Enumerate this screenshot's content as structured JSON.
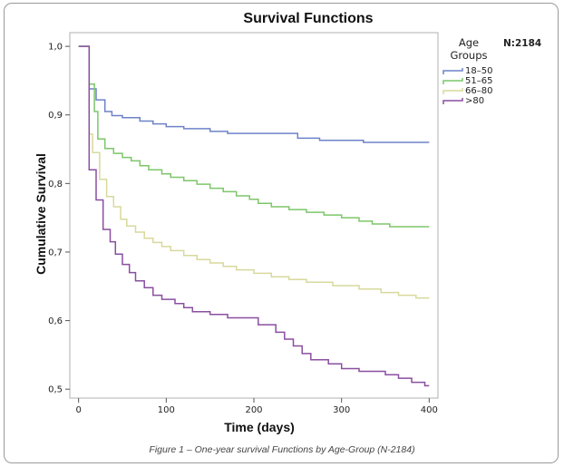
{
  "caption": "Figure 1 – One-year survival Functions by Age-Group (N-2184)",
  "chart_data": {
    "type": "line",
    "title": "Survival Functions",
    "xlabel": "Time (days)",
    "ylabel": "Cumulative Survival",
    "xlim": [
      -10,
      410
    ],
    "ylim": [
      0.487,
      1.02
    ],
    "x_ticks": [
      0,
      100,
      200,
      300,
      400
    ],
    "x_tick_labels": [
      "0",
      "100",
      "200",
      "300",
      "400"
    ],
    "y_ticks": [
      0.5,
      0.6,
      0.7,
      0.8,
      0.9,
      1.0
    ],
    "y_tick_labels": [
      "0,5",
      "0,6",
      "0,7",
      "0,8",
      "0,9",
      "1,0"
    ],
    "grid": false,
    "legend": {
      "title_line1": "Age",
      "title_line2": "Groups",
      "position": "right"
    },
    "annotation": "N:2184",
    "step": true,
    "series": [
      {
        "name": "18–50",
        "color": "#6e82c8",
        "points": [
          [
            0,
            1.0
          ],
          [
            12,
            1.0
          ],
          [
            12,
            0.938
          ],
          [
            20,
            0.938
          ],
          [
            20,
            0.922
          ],
          [
            30,
            0.922
          ],
          [
            30,
            0.905
          ],
          [
            38,
            0.905
          ],
          [
            38,
            0.899
          ],
          [
            50,
            0.899
          ],
          [
            50,
            0.896
          ],
          [
            70,
            0.896
          ],
          [
            70,
            0.891
          ],
          [
            85,
            0.891
          ],
          [
            85,
            0.887
          ],
          [
            100,
            0.887
          ],
          [
            100,
            0.883
          ],
          [
            120,
            0.883
          ],
          [
            120,
            0.88
          ],
          [
            150,
            0.88
          ],
          [
            150,
            0.876
          ],
          [
            170,
            0.876
          ],
          [
            170,
            0.873
          ],
          [
            250,
            0.873
          ],
          [
            250,
            0.866
          ],
          [
            275,
            0.866
          ],
          [
            275,
            0.863
          ],
          [
            325,
            0.863
          ],
          [
            325,
            0.86
          ],
          [
            400,
            0.86
          ]
        ]
      },
      {
        "name": "51–65",
        "color": "#7dc66a",
        "points": [
          [
            0,
            1.0
          ],
          [
            12,
            1.0
          ],
          [
            12,
            0.945
          ],
          [
            18,
            0.945
          ],
          [
            18,
            0.905
          ],
          [
            22,
            0.905
          ],
          [
            22,
            0.865
          ],
          [
            30,
            0.865
          ],
          [
            30,
            0.851
          ],
          [
            40,
            0.851
          ],
          [
            40,
            0.844
          ],
          [
            50,
            0.844
          ],
          [
            50,
            0.838
          ],
          [
            60,
            0.838
          ],
          [
            60,
            0.833
          ],
          [
            70,
            0.833
          ],
          [
            70,
            0.826
          ],
          [
            80,
            0.826
          ],
          [
            80,
            0.82
          ],
          [
            95,
            0.82
          ],
          [
            95,
            0.814
          ],
          [
            105,
            0.814
          ],
          [
            105,
            0.809
          ],
          [
            120,
            0.809
          ],
          [
            120,
            0.804
          ],
          [
            135,
            0.804
          ],
          [
            135,
            0.799
          ],
          [
            150,
            0.799
          ],
          [
            150,
            0.793
          ],
          [
            165,
            0.793
          ],
          [
            165,
            0.788
          ],
          [
            180,
            0.788
          ],
          [
            180,
            0.782
          ],
          [
            195,
            0.782
          ],
          [
            195,
            0.777
          ],
          [
            205,
            0.777
          ],
          [
            205,
            0.771
          ],
          [
            220,
            0.771
          ],
          [
            220,
            0.766
          ],
          [
            240,
            0.766
          ],
          [
            240,
            0.762
          ],
          [
            260,
            0.762
          ],
          [
            260,
            0.758
          ],
          [
            280,
            0.758
          ],
          [
            280,
            0.754
          ],
          [
            300,
            0.754
          ],
          [
            300,
            0.75
          ],
          [
            320,
            0.75
          ],
          [
            320,
            0.745
          ],
          [
            335,
            0.745
          ],
          [
            335,
            0.741
          ],
          [
            355,
            0.741
          ],
          [
            355,
            0.737
          ],
          [
            400,
            0.737
          ]
        ]
      },
      {
        "name": "66–80",
        "color": "#d8d99c",
        "points": [
          [
            0,
            1.0
          ],
          [
            12,
            1.0
          ],
          [
            12,
            0.872
          ],
          [
            16,
            0.872
          ],
          [
            16,
            0.845
          ],
          [
            24,
            0.845
          ],
          [
            24,
            0.806
          ],
          [
            32,
            0.806
          ],
          [
            32,
            0.781
          ],
          [
            40,
            0.781
          ],
          [
            40,
            0.766
          ],
          [
            48,
            0.766
          ],
          [
            48,
            0.748
          ],
          [
            55,
            0.748
          ],
          [
            55,
            0.738
          ],
          [
            65,
            0.738
          ],
          [
            65,
            0.729
          ],
          [
            75,
            0.729
          ],
          [
            75,
            0.72
          ],
          [
            85,
            0.72
          ],
          [
            85,
            0.714
          ],
          [
            95,
            0.714
          ],
          [
            95,
            0.708
          ],
          [
            105,
            0.708
          ],
          [
            105,
            0.702
          ],
          [
            120,
            0.702
          ],
          [
            120,
            0.695
          ],
          [
            135,
            0.695
          ],
          [
            135,
            0.689
          ],
          [
            150,
            0.689
          ],
          [
            150,
            0.684
          ],
          [
            165,
            0.684
          ],
          [
            165,
            0.679
          ],
          [
            180,
            0.679
          ],
          [
            180,
            0.674
          ],
          [
            200,
            0.674
          ],
          [
            200,
            0.669
          ],
          [
            220,
            0.669
          ],
          [
            220,
            0.664
          ],
          [
            240,
            0.664
          ],
          [
            240,
            0.66
          ],
          [
            260,
            0.66
          ],
          [
            260,
            0.656
          ],
          [
            290,
            0.656
          ],
          [
            290,
            0.651
          ],
          [
            320,
            0.651
          ],
          [
            320,
            0.646
          ],
          [
            345,
            0.646
          ],
          [
            345,
            0.641
          ],
          [
            365,
            0.641
          ],
          [
            365,
            0.637
          ],
          [
            385,
            0.637
          ],
          [
            385,
            0.633
          ],
          [
            400,
            0.633
          ]
        ]
      },
      {
        "name": ">80",
        "color": "#8a4fa0",
        "points": [
          [
            0,
            1.0
          ],
          [
            12,
            1.0
          ],
          [
            12,
            0.82
          ],
          [
            20,
            0.82
          ],
          [
            20,
            0.776
          ],
          [
            28,
            0.776
          ],
          [
            28,
            0.733
          ],
          [
            36,
            0.733
          ],
          [
            36,
            0.715
          ],
          [
            42,
            0.715
          ],
          [
            42,
            0.697
          ],
          [
            50,
            0.697
          ],
          [
            50,
            0.682
          ],
          [
            58,
            0.682
          ],
          [
            58,
            0.67
          ],
          [
            65,
            0.67
          ],
          [
            65,
            0.658
          ],
          [
            75,
            0.658
          ],
          [
            75,
            0.648
          ],
          [
            85,
            0.648
          ],
          [
            85,
            0.637
          ],
          [
            95,
            0.637
          ],
          [
            95,
            0.631
          ],
          [
            110,
            0.631
          ],
          [
            110,
            0.625
          ],
          [
            120,
            0.625
          ],
          [
            120,
            0.619
          ],
          [
            130,
            0.619
          ],
          [
            130,
            0.613
          ],
          [
            150,
            0.613
          ],
          [
            150,
            0.609
          ],
          [
            170,
            0.609
          ],
          [
            170,
            0.604
          ],
          [
            205,
            0.604
          ],
          [
            205,
            0.594
          ],
          [
            225,
            0.594
          ],
          [
            225,
            0.583
          ],
          [
            235,
            0.583
          ],
          [
            235,
            0.573
          ],
          [
            245,
            0.573
          ],
          [
            245,
            0.563
          ],
          [
            255,
            0.563
          ],
          [
            255,
            0.552
          ],
          [
            265,
            0.552
          ],
          [
            265,
            0.543
          ],
          [
            285,
            0.543
          ],
          [
            285,
            0.537
          ],
          [
            300,
            0.537
          ],
          [
            300,
            0.53
          ],
          [
            320,
            0.53
          ],
          [
            320,
            0.526
          ],
          [
            350,
            0.526
          ],
          [
            350,
            0.521
          ],
          [
            365,
            0.521
          ],
          [
            365,
            0.516
          ],
          [
            380,
            0.516
          ],
          [
            380,
            0.51
          ],
          [
            395,
            0.51
          ],
          [
            395,
            0.505
          ],
          [
            400,
            0.505
          ]
        ]
      }
    ]
  }
}
